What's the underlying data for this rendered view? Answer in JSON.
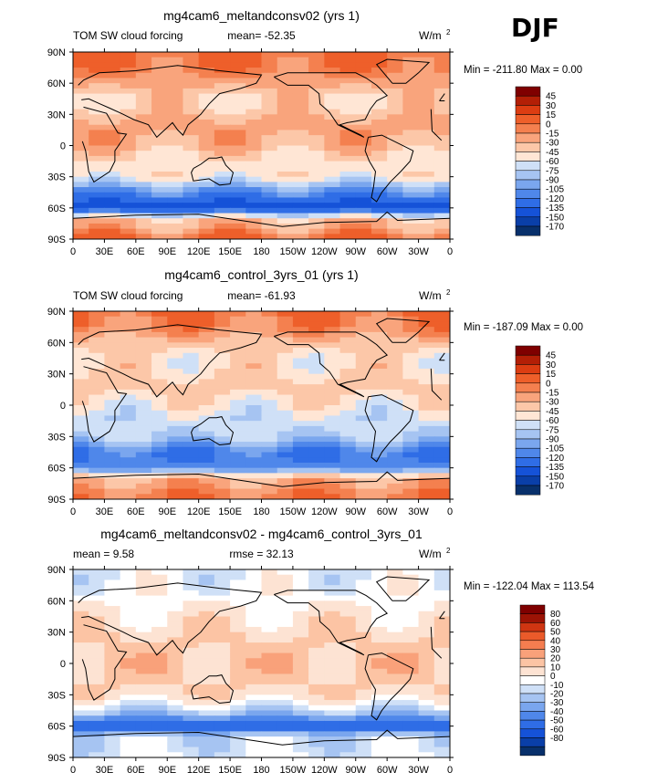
{
  "season": "DJF",
  "colors": {
    "map_scale": [
      "#08306b",
      "#0a3fa8",
      "#1552d8",
      "#2f6de6",
      "#4f87ea",
      "#7aa6ee",
      "#a6c4f2",
      "#cfe0f7",
      "#ffe6d5",
      "#fcc7a8",
      "#f9a47c",
      "#f4804f",
      "#ee5f2a",
      "#dc3d12",
      "#b31f06",
      "#7f0000"
    ],
    "diff_scale": [
      "#08306b",
      "#0a3fa8",
      "#1552d8",
      "#2f6de6",
      "#4f87ea",
      "#7aa6ee",
      "#a6c4f2",
      "#cfe0f7",
      "#ffffff",
      "#fde3d3",
      "#fcc4a4",
      "#f9a17a",
      "#f47d50",
      "#ea5a2a",
      "#cf3512",
      "#9c1305",
      "#7f0000"
    ],
    "land": "#000000"
  },
  "chart_data": [
    {
      "type": "heatmap",
      "title": "mg4cam6_meltandconsv02 (yrs 1)",
      "left_label": "TOM SW cloud forcing",
      "stat_text": "mean= -52.35",
      "units": "W/m",
      "units_sup": "2",
      "minmax_text": "Min = -211.80  Max =    0.00",
      "colorbar_labels": [
        "45",
        "30",
        "15",
        "0",
        "-15",
        "-30",
        "-45",
        "-60",
        "-75",
        "-90",
        "-105",
        "-120",
        "-135",
        "-150",
        "-170"
      ],
      "lat_ticks": [
        "90N",
        "60N",
        "30N",
        "0",
        "30S",
        "60S",
        "90S"
      ],
      "lon_ticks": [
        "0",
        "30E",
        "60E",
        "90E",
        "120E",
        "150E",
        "180",
        "150W",
        "120W",
        "90W",
        "60W",
        "30W",
        "0"
      ],
      "xlim": [
        0,
        360
      ],
      "ylim": [
        -90,
        90
      ],
      "zonal_profile": [
        {
          "lat": 90,
          "value": 0
        },
        {
          "lat": 75,
          "value": -5
        },
        {
          "lat": 60,
          "value": -25
        },
        {
          "lat": 45,
          "value": -45
        },
        {
          "lat": 30,
          "value": -35
        },
        {
          "lat": 15,
          "value": -20
        },
        {
          "lat": 0,
          "value": -30
        },
        {
          "lat": -15,
          "value": -50
        },
        {
          "lat": -30,
          "value": -55
        },
        {
          "lat": -45,
          "value": -110
        },
        {
          "lat": -60,
          "value": -150
        },
        {
          "lat": -70,
          "value": -40
        },
        {
          "lat": -90,
          "value": 0
        }
      ]
    },
    {
      "type": "heatmap",
      "title": "mg4cam6_control_3yrs_01 (yrs 1)",
      "left_label": "TOM SW cloud forcing",
      "stat_text": "mean= -61.93",
      "units": "W/m",
      "units_sup": "2",
      "minmax_text": "Min = -187.09  Max =    0.00",
      "colorbar_labels": [
        "45",
        "30",
        "15",
        "0",
        "-15",
        "-30",
        "-45",
        "-60",
        "-75",
        "-90",
        "-105",
        "-120",
        "-135",
        "-150",
        "-170"
      ],
      "lat_ticks": [
        "90N",
        "60N",
        "30N",
        "0",
        "30S",
        "60S",
        "90S"
      ],
      "lon_ticks": [
        "0",
        "30E",
        "60E",
        "90E",
        "120E",
        "150E",
        "180",
        "150W",
        "120W",
        "90W",
        "60W",
        "30W",
        "0"
      ],
      "xlim": [
        0,
        360
      ],
      "ylim": [
        -90,
        90
      ],
      "zonal_profile": [
        {
          "lat": 90,
          "value": 0
        },
        {
          "lat": 75,
          "value": -10
        },
        {
          "lat": 60,
          "value": -35
        },
        {
          "lat": 45,
          "value": -50
        },
        {
          "lat": 30,
          "value": -45
        },
        {
          "lat": 15,
          "value": -40
        },
        {
          "lat": 0,
          "value": -55
        },
        {
          "lat": -15,
          "value": -70
        },
        {
          "lat": -30,
          "value": -75
        },
        {
          "lat": -45,
          "value": -120
        },
        {
          "lat": -60,
          "value": -110
        },
        {
          "lat": -70,
          "value": -30
        },
        {
          "lat": -90,
          "value": 0
        }
      ]
    },
    {
      "type": "heatmap",
      "title": "mg4cam6_meltandconsv02 - mg4cam6_control_3yrs_01",
      "left_label": "mean =    9.58",
      "stat_text": "rmse =   32.13",
      "units": "W/m",
      "units_sup": "2",
      "minmax_text": "Min = -122.04  Max = 113.54",
      "colorbar_labels": [
        "80",
        "60",
        "50",
        "40",
        "30",
        "20",
        "10",
        "0",
        "-10",
        "-20",
        "-30",
        "-40",
        "-50",
        "-60",
        "-80"
      ],
      "lat_ticks": [
        "90N",
        "60N",
        "30N",
        "0",
        "30S",
        "60S",
        "90S"
      ],
      "lon_ticks": [
        "0",
        "30E",
        "60E",
        "90E",
        "120E",
        "150E",
        "180",
        "150W",
        "120W",
        "90W",
        "60W",
        "30W",
        "0"
      ],
      "xlim": [
        0,
        360
      ],
      "ylim": [
        -90,
        90
      ],
      "zonal_profile": [
        {
          "lat": 90,
          "value": 0
        },
        {
          "lat": 75,
          "value": 2
        },
        {
          "lat": 60,
          "value": 8
        },
        {
          "lat": 45,
          "value": 12
        },
        {
          "lat": 30,
          "value": 20
        },
        {
          "lat": 15,
          "value": 22
        },
        {
          "lat": 0,
          "value": 25
        },
        {
          "lat": -15,
          "value": 22
        },
        {
          "lat": -30,
          "value": 18
        },
        {
          "lat": -45,
          "value": -10
        },
        {
          "lat": -60,
          "value": -55
        },
        {
          "lat": -70,
          "value": -5
        },
        {
          "lat": -90,
          "value": 0
        }
      ]
    }
  ]
}
